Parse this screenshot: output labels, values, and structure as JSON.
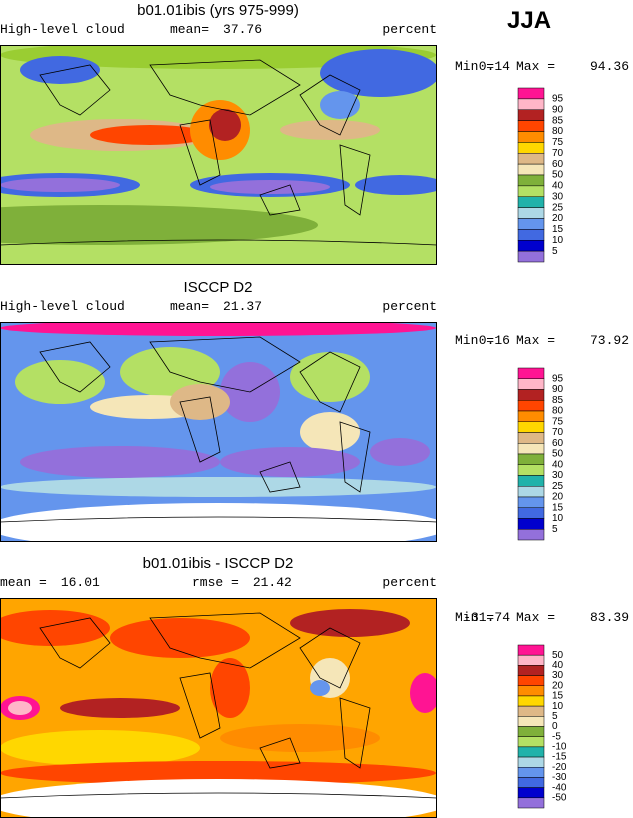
{
  "season": "JJA",
  "panels": [
    {
      "title": "b01.01ibis (yrs 975-999)",
      "subtitle_left": "High-level cloud",
      "stats": [
        {
          "label": "mean=",
          "value": 37.76
        }
      ],
      "units": "percent",
      "min_label": "Min =",
      "min": 0.14,
      "max_label": "Max =",
      "max": 94.36,
      "colorbar": {
        "levels": [
          95,
          90,
          85,
          80,
          75,
          70,
          60,
          50,
          40,
          30,
          25,
          20,
          15,
          10,
          5
        ],
        "colors": [
          "#ff1493",
          "#ffb6c8",
          "#b22222",
          "#ff4500",
          "#ff8c00",
          "#ffd700",
          "#deb887",
          "#f5e6b8",
          "#7fb03a",
          "#b4e064",
          "#20b2aa",
          "#add8e6",
          "#6495ed",
          "#4169e1",
          "#0000cd",
          "#9370db"
        ]
      }
    },
    {
      "title": "ISCCP D2",
      "subtitle_left": "High-level cloud",
      "stats": [
        {
          "label": "mean=",
          "value": 21.37
        }
      ],
      "units": "percent",
      "min_label": "Min =",
      "min": 0.16,
      "max_label": "Max =",
      "max": 73.92,
      "colorbar": {
        "levels": [
          95,
          90,
          85,
          80,
          75,
          70,
          60,
          50,
          40,
          30,
          25,
          20,
          15,
          10,
          5
        ],
        "colors": [
          "#ff1493",
          "#ffb6c8",
          "#b22222",
          "#ff4500",
          "#ff8c00",
          "#ffd700",
          "#deb887",
          "#f5e6b8",
          "#7fb03a",
          "#b4e064",
          "#20b2aa",
          "#add8e6",
          "#6495ed",
          "#4169e1",
          "#0000cd",
          "#9370db"
        ]
      }
    },
    {
      "title": "b01.01ibis - ISCCP D2",
      "stats": [
        {
          "label": "mean =",
          "value": 16.01
        },
        {
          "label": "rmse =",
          "value": 21.42
        }
      ],
      "units": "percent",
      "min_label": "Min =",
      "min": -31.74,
      "max_label": "Max =",
      "max": 83.39,
      "colorbar": {
        "levels": [
          50,
          40,
          30,
          20,
          15,
          10,
          5,
          0,
          -5,
          -10,
          -15,
          -20,
          -30,
          -40,
          -50
        ],
        "colors": [
          "#ff1493",
          "#ffb6c8",
          "#b22222",
          "#ff4500",
          "#ff8c00",
          "#ffd700",
          "#deb887",
          "#f5e6b8",
          "#7fb03a",
          "#b4e064",
          "#20b2aa",
          "#add8e6",
          "#6495ed",
          "#4169e1",
          "#0000cd",
          "#9370db"
        ]
      }
    }
  ]
}
